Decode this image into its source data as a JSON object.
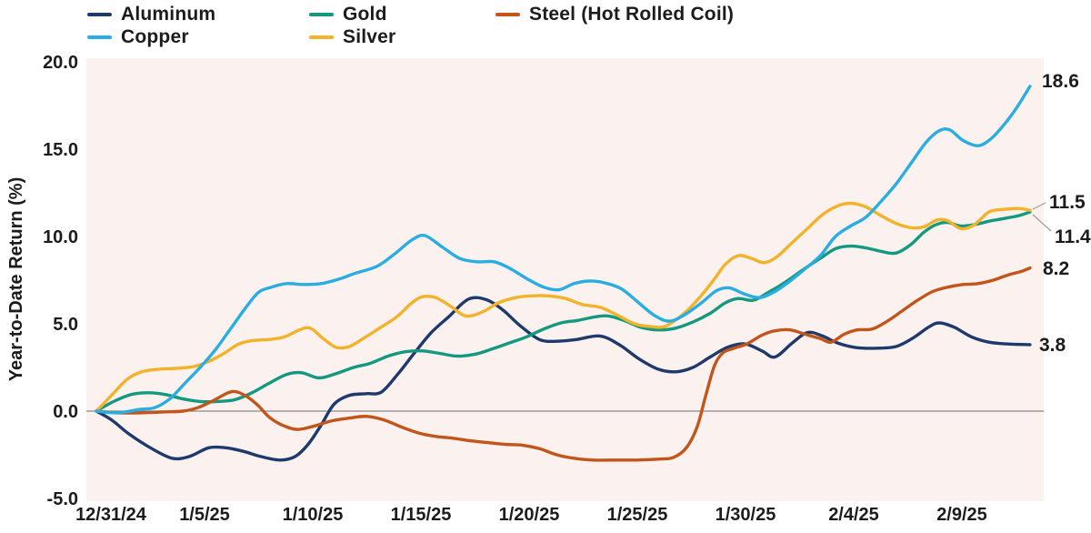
{
  "legend": {
    "items": [
      {
        "label": "Aluminum",
        "color": "#1e3a6d"
      },
      {
        "label": "Copper",
        "color": "#29ade2"
      },
      {
        "label": "Gold",
        "color": "#14987f"
      },
      {
        "label": "Silver",
        "color": "#f2b32a"
      },
      {
        "label": "Steel (Hot Rolled Coil)",
        "color": "#c2551c"
      }
    ]
  },
  "y_axis": {
    "title": "Year-to-Date Return (%)",
    "ticks": [
      "20.0",
      "15.0",
      "10.0",
      "5.0",
      "0.0",
      "-5.0"
    ]
  },
  "x_axis": {
    "ticks": [
      "12/31/24",
      "1/5/25",
      "1/10/25",
      "1/15/25",
      "1/20/25",
      "1/25/25",
      "1/30/25",
      "2/4/25",
      "2/9/25"
    ]
  },
  "chart_data": {
    "type": "line",
    "title": "",
    "xlabel": "",
    "ylabel": "Year-to-Date Return (%)",
    "ylim": [
      -5.0,
      20.0
    ],
    "x_unit": "days since 12/31/24 (x ticks every 5 days, series extend to ~2/12/25)",
    "grid": false,
    "legend_position": "top",
    "plot_bg": "#fbf1ee",
    "zero_line_color": "#8a8a8a",
    "leader_line_color": "#9a9a9a",
    "series": [
      {
        "name": "Aluminum",
        "color": "#1e3a6d",
        "end_label": "3.8",
        "points": [
          [
            0,
            0
          ],
          [
            0.7,
            -0.5
          ],
          [
            1.5,
            -1.3
          ],
          [
            2.5,
            -2.1
          ],
          [
            3.5,
            -2.7
          ],
          [
            4.3,
            -2.6
          ],
          [
            5.2,
            -2.1
          ],
          [
            6,
            -2.1
          ],
          [
            6.8,
            -2.3
          ],
          [
            7.6,
            -2.6
          ],
          [
            8.5,
            -2.8
          ],
          [
            9.2,
            -2.6
          ],
          [
            9.8,
            -1.9
          ],
          [
            10.4,
            -0.8
          ],
          [
            11,
            0.4
          ],
          [
            11.7,
            0.9
          ],
          [
            12.5,
            1.0
          ],
          [
            13.2,
            1.1
          ],
          [
            14,
            2.2
          ],
          [
            14.7,
            3.3
          ],
          [
            15.5,
            4.5
          ],
          [
            16.3,
            5.4
          ],
          [
            17.2,
            6.4
          ],
          [
            18,
            6.4
          ],
          [
            18.8,
            5.8
          ],
          [
            19.6,
            4.9
          ],
          [
            20.5,
            4.1
          ],
          [
            21.3,
            4.0
          ],
          [
            22.2,
            4.1
          ],
          [
            23.3,
            4.3
          ],
          [
            24.2,
            3.8
          ],
          [
            25.1,
            3.0
          ],
          [
            26,
            2.4
          ],
          [
            26.8,
            2.25
          ],
          [
            27.6,
            2.5
          ],
          [
            28.4,
            3.1
          ],
          [
            29.2,
            3.65
          ],
          [
            30,
            3.85
          ],
          [
            30.8,
            3.45
          ],
          [
            31.4,
            3.1
          ],
          [
            32.2,
            3.9
          ],
          [
            32.9,
            4.5
          ],
          [
            33.6,
            4.3
          ],
          [
            34.3,
            3.9
          ],
          [
            35.1,
            3.65
          ],
          [
            36,
            3.6
          ],
          [
            37,
            3.7
          ],
          [
            37.8,
            4.2
          ],
          [
            38.5,
            4.8
          ],
          [
            39,
            5.05
          ],
          [
            39.7,
            4.8
          ],
          [
            40.5,
            4.25
          ],
          [
            41.3,
            3.95
          ],
          [
            42.1,
            3.85
          ],
          [
            43.2,
            3.8
          ]
        ]
      },
      {
        "name": "Gold",
        "color": "#14987f",
        "end_label": "11.4",
        "points": [
          [
            0,
            0
          ],
          [
            0.8,
            0.55
          ],
          [
            1.6,
            0.95
          ],
          [
            2.4,
            1.05
          ],
          [
            3.2,
            0.95
          ],
          [
            4,
            0.7
          ],
          [
            4.8,
            0.55
          ],
          [
            5.6,
            0.55
          ],
          [
            6.4,
            0.65
          ],
          [
            7.2,
            1.05
          ],
          [
            8,
            1.6
          ],
          [
            8.8,
            2.1
          ],
          [
            9.5,
            2.2
          ],
          [
            10.3,
            1.9
          ],
          [
            11.1,
            2.15
          ],
          [
            11.9,
            2.5
          ],
          [
            12.7,
            2.75
          ],
          [
            13.5,
            3.15
          ],
          [
            14.3,
            3.4
          ],
          [
            15.1,
            3.45
          ],
          [
            15.9,
            3.3
          ],
          [
            16.7,
            3.15
          ],
          [
            17.5,
            3.25
          ],
          [
            18.3,
            3.55
          ],
          [
            19.1,
            3.9
          ],
          [
            19.9,
            4.25
          ],
          [
            20.7,
            4.7
          ],
          [
            21.5,
            5.05
          ],
          [
            22.3,
            5.2
          ],
          [
            23.1,
            5.4
          ],
          [
            23.7,
            5.45
          ],
          [
            24.4,
            5.2
          ],
          [
            25.2,
            4.8
          ],
          [
            26,
            4.65
          ],
          [
            26.8,
            4.75
          ],
          [
            27.6,
            5.1
          ],
          [
            28.4,
            5.6
          ],
          [
            29.1,
            6.2
          ],
          [
            29.7,
            6.45
          ],
          [
            30.4,
            6.35
          ],
          [
            31.1,
            6.8
          ],
          [
            31.9,
            7.4
          ],
          [
            32.7,
            8.1
          ],
          [
            33.5,
            8.75
          ],
          [
            34.2,
            9.3
          ],
          [
            34.9,
            9.45
          ],
          [
            35.6,
            9.35
          ],
          [
            36.3,
            9.15
          ],
          [
            37,
            9.05
          ],
          [
            37.7,
            9.55
          ],
          [
            38.3,
            10.25
          ],
          [
            38.9,
            10.7
          ],
          [
            39.4,
            10.8
          ],
          [
            40,
            10.6
          ],
          [
            40.7,
            10.7
          ],
          [
            41.4,
            10.9
          ],
          [
            42.1,
            11.05
          ],
          [
            42.7,
            11.2
          ],
          [
            43.2,
            11.4
          ]
        ]
      },
      {
        "name": "Silver",
        "color": "#f2b32a",
        "end_label": "11.5",
        "points": [
          [
            0,
            0
          ],
          [
            0.7,
            0.9
          ],
          [
            1.4,
            1.8
          ],
          [
            2.1,
            2.25
          ],
          [
            2.9,
            2.4
          ],
          [
            3.7,
            2.45
          ],
          [
            4.5,
            2.55
          ],
          [
            5.2,
            2.85
          ],
          [
            5.9,
            3.3
          ],
          [
            6.6,
            3.85
          ],
          [
            7.3,
            4.05
          ],
          [
            8,
            4.1
          ],
          [
            8.7,
            4.25
          ],
          [
            9.4,
            4.65
          ],
          [
            9.9,
            4.75
          ],
          [
            10.5,
            4.15
          ],
          [
            11.1,
            3.65
          ],
          [
            11.7,
            3.7
          ],
          [
            12.4,
            4.2
          ],
          [
            13.1,
            4.75
          ],
          [
            13.9,
            5.4
          ],
          [
            14.6,
            6.2
          ],
          [
            15.1,
            6.55
          ],
          [
            15.7,
            6.5
          ],
          [
            16.4,
            6.0
          ],
          [
            17.1,
            5.45
          ],
          [
            17.9,
            5.7
          ],
          [
            18.6,
            6.2
          ],
          [
            19.4,
            6.5
          ],
          [
            20.1,
            6.6
          ],
          [
            20.9,
            6.6
          ],
          [
            21.7,
            6.45
          ],
          [
            22.5,
            6.1
          ],
          [
            23.3,
            5.95
          ],
          [
            24.1,
            5.5
          ],
          [
            24.9,
            5.0
          ],
          [
            25.6,
            4.85
          ],
          [
            26.3,
            4.85
          ],
          [
            27.1,
            5.5
          ],
          [
            27.8,
            6.35
          ],
          [
            28.5,
            7.4
          ],
          [
            29.1,
            8.4
          ],
          [
            29.7,
            8.9
          ],
          [
            30.3,
            8.75
          ],
          [
            30.9,
            8.5
          ],
          [
            31.5,
            8.85
          ],
          [
            32.2,
            9.65
          ],
          [
            32.9,
            10.45
          ],
          [
            33.6,
            11.25
          ],
          [
            34.3,
            11.75
          ],
          [
            34.9,
            11.9
          ],
          [
            35.6,
            11.7
          ],
          [
            36.3,
            11.2
          ],
          [
            37,
            10.75
          ],
          [
            37.7,
            10.5
          ],
          [
            38.3,
            10.55
          ],
          [
            38.9,
            10.95
          ],
          [
            39.4,
            10.9
          ],
          [
            40,
            10.45
          ],
          [
            40.6,
            10.65
          ],
          [
            41.3,
            11.4
          ],
          [
            42,
            11.55
          ],
          [
            42.7,
            11.6
          ],
          [
            43.2,
            11.5
          ]
        ]
      },
      {
        "name": "Steel (Hot Rolled Coil)",
        "color": "#c2551c",
        "end_label": "8.2",
        "points": [
          [
            0,
            0
          ],
          [
            1,
            -0.1
          ],
          [
            2,
            -0.1
          ],
          [
            3,
            -0.05
          ],
          [
            4,
            0
          ],
          [
            4.7,
            0.2
          ],
          [
            5.4,
            0.6
          ],
          [
            6.1,
            1.05
          ],
          [
            6.5,
            1.1
          ],
          [
            7,
            0.8
          ],
          [
            7.5,
            0.3
          ],
          [
            8,
            -0.35
          ],
          [
            8.6,
            -0.8
          ],
          [
            9.3,
            -1.05
          ],
          [
            10.1,
            -0.85
          ],
          [
            10.9,
            -0.55
          ],
          [
            11.7,
            -0.4
          ],
          [
            12.5,
            -0.3
          ],
          [
            13.3,
            -0.5
          ],
          [
            14.1,
            -0.9
          ],
          [
            14.9,
            -1.25
          ],
          [
            15.7,
            -1.45
          ],
          [
            16.5,
            -1.55
          ],
          [
            17.3,
            -1.7
          ],
          [
            18.1,
            -1.8
          ],
          [
            18.9,
            -1.9
          ],
          [
            19.7,
            -1.95
          ],
          [
            20.5,
            -2.15
          ],
          [
            21.3,
            -2.5
          ],
          [
            22.1,
            -2.7
          ],
          [
            23,
            -2.8
          ],
          [
            24,
            -2.8
          ],
          [
            25,
            -2.8
          ],
          [
            26,
            -2.75
          ],
          [
            26.7,
            -2.65
          ],
          [
            27.3,
            -2.1
          ],
          [
            27.8,
            -0.9
          ],
          [
            28.2,
            0.9
          ],
          [
            28.6,
            2.6
          ],
          [
            29,
            3.35
          ],
          [
            29.5,
            3.6
          ],
          [
            30.1,
            3.85
          ],
          [
            30.8,
            4.35
          ],
          [
            31.4,
            4.6
          ],
          [
            32.1,
            4.65
          ],
          [
            32.8,
            4.4
          ],
          [
            33.5,
            4.15
          ],
          [
            34,
            3.95
          ],
          [
            34.6,
            4.4
          ],
          [
            35.2,
            4.65
          ],
          [
            35.9,
            4.7
          ],
          [
            36.6,
            5.15
          ],
          [
            37.3,
            5.75
          ],
          [
            38,
            6.35
          ],
          [
            38.7,
            6.85
          ],
          [
            39.4,
            7.1
          ],
          [
            40.1,
            7.25
          ],
          [
            40.8,
            7.3
          ],
          [
            41.5,
            7.5
          ],
          [
            42.2,
            7.8
          ],
          [
            42.8,
            8.0
          ],
          [
            43.2,
            8.2
          ]
        ]
      },
      {
        "name": "Copper",
        "color": "#29ade2",
        "end_label": "18.6",
        "points": [
          [
            0,
            0
          ],
          [
            1,
            -0.1
          ],
          [
            2,
            0.1
          ],
          [
            2.7,
            0.2
          ],
          [
            3.4,
            0.7
          ],
          [
            4.1,
            1.6
          ],
          [
            4.8,
            2.5
          ],
          [
            5.5,
            3.5
          ],
          [
            6.2,
            4.7
          ],
          [
            6.9,
            5.9
          ],
          [
            7.5,
            6.8
          ],
          [
            8.1,
            7.1
          ],
          [
            8.8,
            7.3
          ],
          [
            9.6,
            7.25
          ],
          [
            10.4,
            7.3
          ],
          [
            11.2,
            7.55
          ],
          [
            12,
            7.9
          ],
          [
            13,
            8.3
          ],
          [
            13.8,
            9.0
          ],
          [
            14.6,
            9.8
          ],
          [
            15.2,
            10.05
          ],
          [
            16,
            9.4
          ],
          [
            16.8,
            8.75
          ],
          [
            17.6,
            8.55
          ],
          [
            18.4,
            8.55
          ],
          [
            19.1,
            8.2
          ],
          [
            19.9,
            7.6
          ],
          [
            20.7,
            7.1
          ],
          [
            21.4,
            6.95
          ],
          [
            22.1,
            7.3
          ],
          [
            22.8,
            7.45
          ],
          [
            23.5,
            7.35
          ],
          [
            24.3,
            7.0
          ],
          [
            25.1,
            6.2
          ],
          [
            25.8,
            5.5
          ],
          [
            26.5,
            5.15
          ],
          [
            27.2,
            5.5
          ],
          [
            28,
            6.2
          ],
          [
            28.7,
            6.9
          ],
          [
            29.3,
            7.05
          ],
          [
            30,
            6.7
          ],
          [
            30.7,
            6.5
          ],
          [
            31.4,
            6.85
          ],
          [
            32.1,
            7.45
          ],
          [
            32.8,
            8.15
          ],
          [
            33.5,
            8.9
          ],
          [
            34.2,
            10.0
          ],
          [
            34.9,
            10.6
          ],
          [
            35.6,
            11.1
          ],
          [
            36.3,
            12.0
          ],
          [
            37,
            13.0
          ],
          [
            37.7,
            14.2
          ],
          [
            38.4,
            15.4
          ],
          [
            39,
            16.05
          ],
          [
            39.5,
            16.1
          ],
          [
            40.1,
            15.5
          ],
          [
            40.8,
            15.2
          ],
          [
            41.4,
            15.6
          ],
          [
            42,
            16.4
          ],
          [
            42.6,
            17.4
          ],
          [
            43.2,
            18.6
          ]
        ]
      }
    ]
  }
}
